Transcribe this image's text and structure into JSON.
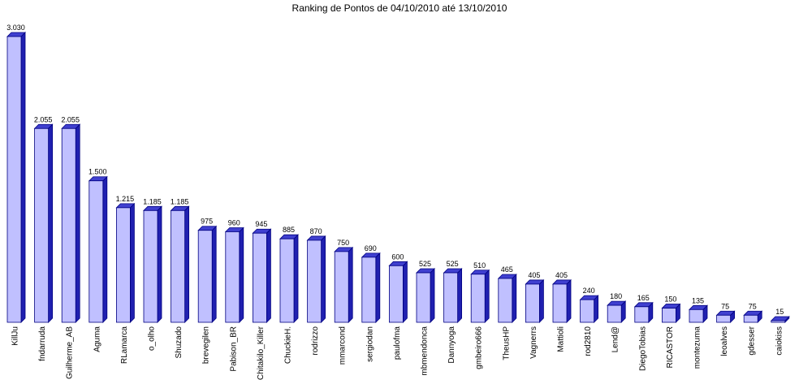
{
  "chart_data": {
    "type": "bar",
    "title": "Ranking de Pontos de 04/10/2010 até 13/10/2010",
    "xlabel": "",
    "ylabel": "",
    "ylim": [
      0,
      3030
    ],
    "grid": false,
    "legend": "none",
    "colors": {
      "face": "#c0c0ff",
      "side": "#2020b0",
      "top": "#4040d0",
      "edge": "#000080"
    },
    "categories": [
      "KillJu",
      "fndarruda",
      "Guilherme_AB",
      "Aguma",
      "RLamarca",
      "o_olho",
      "Shuzado",
      "brevegilen",
      "Pabison_BR",
      "Chitakilo_Killer",
      "ChuckieH.",
      "rodrizzo",
      "mmarcond",
      "sergiodan",
      "paulofma",
      "mbmendonca",
      "Dannyoga",
      "gmbeiro666",
      "TheusHP",
      "Vagnerrs",
      "Mattioli",
      "rod2810",
      "Lend@",
      "DiegoTobias",
      "RICASTOR",
      "montezuma",
      "leoalves",
      "gdesser",
      "caiokiss"
    ],
    "values": [
      3030,
      2055,
      2055,
      1500,
      1215,
      1185,
      1185,
      975,
      960,
      945,
      885,
      870,
      750,
      690,
      600,
      525,
      525,
      510,
      465,
      405,
      405,
      240,
      180,
      165,
      150,
      135,
      75,
      75,
      15
    ],
    "value_labels": [
      "3.030",
      "2.055",
      "2.055",
      "1.500",
      "1.215",
      "1.185",
      "1.185",
      "975",
      "960",
      "945",
      "885",
      "870",
      "750",
      "690",
      "600",
      "525",
      "525",
      "510",
      "465",
      "405",
      "405",
      "240",
      "180",
      "165",
      "150",
      "135",
      "75",
      "75",
      "15"
    ]
  }
}
